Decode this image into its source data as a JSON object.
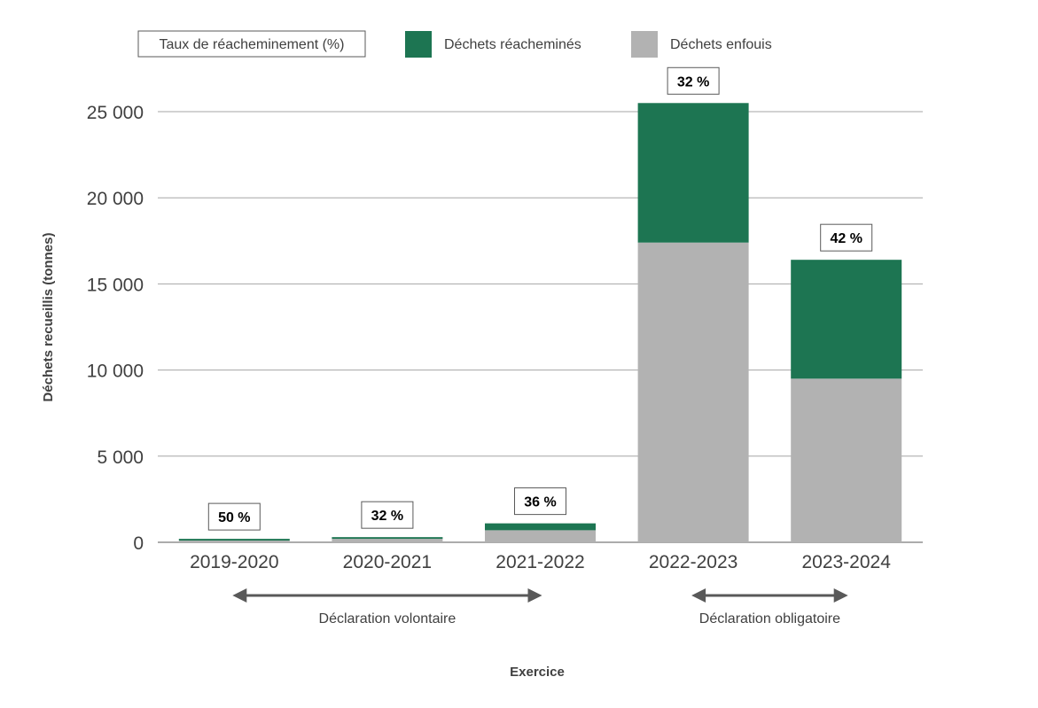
{
  "chart_data": {
    "type": "bar",
    "stacked": true,
    "title": "",
    "xlabel": "Exercice",
    "ylabel": "Déchets recueillis (tonnes)",
    "ylim": [
      0,
      25000
    ],
    "yticks": [
      0,
      5000,
      10000,
      15000,
      20000,
      25000
    ],
    "ytick_labels": [
      "0",
      "5 000",
      "10 000",
      "15 000",
      "20 000",
      "25 000"
    ],
    "grid": true,
    "categories": [
      "2019-2020",
      "2020-2021",
      "2021-2022",
      "2022-2023",
      "2023-2024"
    ],
    "series": [
      {
        "name": "Déchets enfouis",
        "color": "#b2b2b2",
        "values": [
          100,
          200,
          700,
          17400,
          9500
        ]
      },
      {
        "name": "Déchets réacheminés",
        "color": "#1d7552",
        "values": [
          100,
          100,
          400,
          8100,
          6900
        ]
      }
    ],
    "rate_label": "Taux de réacheminement (%)",
    "rates": [
      "50 %",
      "32 %",
      "36 %",
      "32 %",
      "42 %"
    ],
    "annotations": [
      {
        "text": "Déclaration volontaire",
        "from": "2019-2020",
        "to": "2021-2022"
      },
      {
        "text": "Déclaration obligatoire",
        "from": "2022-2023",
        "to": "2023-2024"
      }
    ],
    "legend": "top",
    "colors": {
      "axis": "#595959",
      "grid": "#a6a6a6",
      "text": "#404040",
      "arrow": "#595959"
    }
  }
}
